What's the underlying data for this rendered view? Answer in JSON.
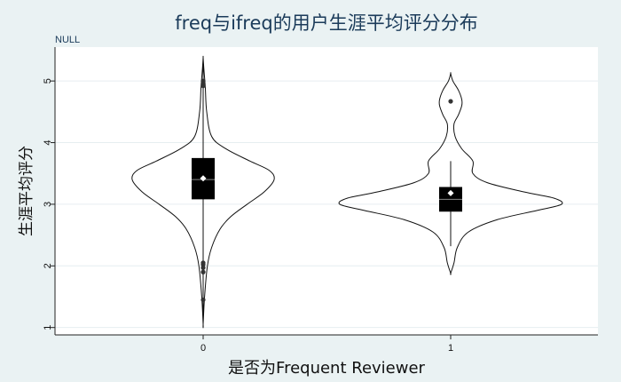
{
  "chart_data": {
    "type": "violin",
    "title": "freq与ifreq的用户生涯平均评分分布",
    "subtitle": "NULL",
    "xlabel": "是否为Frequent Reviewer",
    "ylabel": "生涯平均评分",
    "categories": [
      "0",
      "1"
    ],
    "yticks": [
      1,
      2,
      3,
      4,
      5
    ],
    "ylim": [
      0.88,
      5.55
    ],
    "grid": true,
    "colors": {
      "background": "#eaf2f3",
      "plot_area": "#ffffff",
      "violin_outline": "#111111",
      "box_fill": "#000000",
      "mean_marker": "#ffffff",
      "outlier": "#333333",
      "grid": "#e6eef0"
    },
    "groups": [
      {
        "category": "0",
        "min": 1.05,
        "q1": 3.08,
        "median": 3.4,
        "q3": 3.75,
        "max": 5.38,
        "mean": 3.42,
        "outliers": [
          1.45,
          1.9,
          1.97,
          2.02,
          2.05,
          4.92,
          4.97,
          5.0
        ],
        "density": [
          [
            1.05,
            0.0
          ],
          [
            1.5,
            0.02
          ],
          [
            2.0,
            0.06
          ],
          [
            2.3,
            0.12
          ],
          [
            2.6,
            0.24
          ],
          [
            2.8,
            0.39
          ],
          [
            3.0,
            0.62
          ],
          [
            3.2,
            0.86
          ],
          [
            3.4,
            1.0
          ],
          [
            3.55,
            0.93
          ],
          [
            3.7,
            0.66
          ],
          [
            3.9,
            0.32
          ],
          [
            4.1,
            0.12
          ],
          [
            4.5,
            0.05
          ],
          [
            4.9,
            0.03
          ],
          [
            5.2,
            0.01
          ],
          [
            5.38,
            0.0
          ]
        ]
      },
      {
        "category": "1",
        "min": 2.32,
        "q1": 2.88,
        "median": 3.08,
        "q3": 3.28,
        "max": 3.7,
        "mean": 3.18,
        "outliers": [
          4.67
        ],
        "density": [
          [
            1.88,
            0.0
          ],
          [
            2.05,
            0.03
          ],
          [
            2.3,
            0.06
          ],
          [
            2.55,
            0.16
          ],
          [
            2.75,
            0.42
          ],
          [
            2.9,
            0.78
          ],
          [
            3.0,
            1.0
          ],
          [
            3.1,
            0.93
          ],
          [
            3.2,
            0.66
          ],
          [
            3.35,
            0.33
          ],
          [
            3.5,
            0.2
          ],
          [
            3.7,
            0.2
          ],
          [
            3.9,
            0.1
          ],
          [
            4.1,
            0.04
          ],
          [
            4.3,
            0.03
          ],
          [
            4.45,
            0.07
          ],
          [
            4.6,
            0.1
          ],
          [
            4.7,
            0.1
          ],
          [
            4.85,
            0.07
          ],
          [
            5.0,
            0.02
          ],
          [
            5.12,
            0.0
          ]
        ]
      }
    ]
  }
}
